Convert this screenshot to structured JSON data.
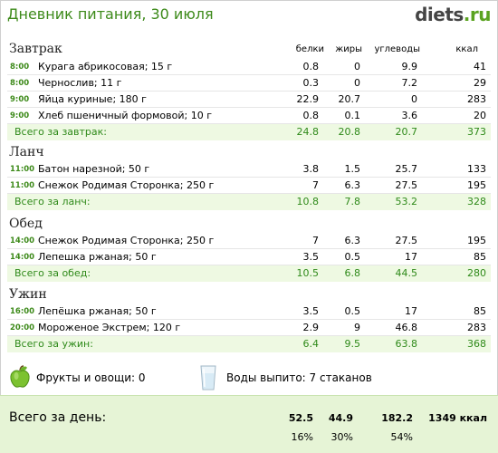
{
  "header": {
    "title": "Дневник питания, 30 июля",
    "logo_main": "diets",
    "logo_tld": ".ru"
  },
  "columns": {
    "protein": "белки",
    "fat": "жиры",
    "carbs": "углеводы",
    "kcal": "ккал"
  },
  "breakfast": {
    "title": "Завтрак",
    "rows": [
      {
        "time": "8:00",
        "name": "Курага абрикосовая; 15 г",
        "p": "0.8",
        "f": "0",
        "c": "9.9",
        "k": "41"
      },
      {
        "time": "8:00",
        "name": "Чернослив; 11 г",
        "p": "0.3",
        "f": "0",
        "c": "7.2",
        "k": "29"
      },
      {
        "time": "9:00",
        "name": "Яйца куриные; 180 г",
        "p": "22.9",
        "f": "20.7",
        "c": "0",
        "k": "283"
      },
      {
        "time": "9:00",
        "name": "Хлеб пшеничный формовой; 10 г",
        "p": "0.8",
        "f": "0.1",
        "c": "3.6",
        "k": "20"
      }
    ],
    "total": {
      "label": "Всего за завтрак:",
      "p": "24.8",
      "f": "20.8",
      "c": "20.7",
      "k": "373"
    }
  },
  "lunch": {
    "title": "Ланч",
    "rows": [
      {
        "time": "11:00",
        "name": "Батон нарезной; 50 г",
        "p": "3.8",
        "f": "1.5",
        "c": "25.7",
        "k": "133"
      },
      {
        "time": "11:00",
        "name": "Снежок Родимая Сторонка; 250 г",
        "p": "7",
        "f": "6.3",
        "c": "27.5",
        "k": "195"
      }
    ],
    "total": {
      "label": "Всего за ланч:",
      "p": "10.8",
      "f": "7.8",
      "c": "53.2",
      "k": "328"
    }
  },
  "dinner": {
    "title": "Обед",
    "rows": [
      {
        "time": "14:00",
        "name": "Снежок Родимая Сторонка; 250 г",
        "p": "7",
        "f": "6.3",
        "c": "27.5",
        "k": "195"
      },
      {
        "time": "14:00",
        "name": "Лепешка ржаная; 50 г",
        "p": "3.5",
        "f": "0.5",
        "c": "17",
        "k": "85"
      }
    ],
    "total": {
      "label": "Всего за обед:",
      "p": "10.5",
      "f": "6.8",
      "c": "44.5",
      "k": "280"
    }
  },
  "supper": {
    "title": "Ужин",
    "rows": [
      {
        "time": "16:00",
        "name": "Лепёшка ржаная; 50 г",
        "p": "3.5",
        "f": "0.5",
        "c": "17",
        "k": "85"
      },
      {
        "time": "20:00",
        "name": "Мороженое Экстрем; 120 г",
        "p": "2.9",
        "f": "9",
        "c": "46.8",
        "k": "283"
      }
    ],
    "total": {
      "label": "Всего за ужин:",
      "p": "6.4",
      "f": "9.5",
      "c": "63.8",
      "k": "368"
    }
  },
  "extras": {
    "fruits_label": "Фрукты и овощи: 0",
    "fruits_icon": "apple-icon",
    "water_label": "Воды выпито: 7 стаканов",
    "water_icon": "glass-icon"
  },
  "day": {
    "label": "Всего за день:",
    "p": "52.5",
    "f": "44.9",
    "c": "182.2",
    "k": "1349 ккал",
    "p_pct": "16%",
    "f_pct": "30%",
    "c_pct": "54%"
  },
  "colors": {
    "accent_green": "#3d8a1a",
    "total_bg": "#eef9e2",
    "day_bg": "#e6f4d6"
  }
}
